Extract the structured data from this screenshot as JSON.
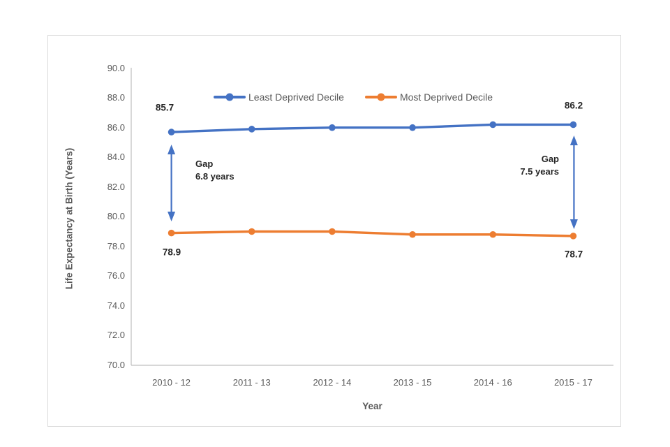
{
  "chart_data": {
    "type": "line",
    "title": "",
    "xlabel": "Year",
    "ylabel": "Life Expectancy at Birth (Years)",
    "categories": [
      "2010 - 12",
      "2011 - 13",
      "2012 - 14",
      "2013 - 15",
      "2014 - 16",
      "2015 - 17"
    ],
    "series": [
      {
        "name": "Least Deprived Decile",
        "color": "#4472C4",
        "values": [
          85.7,
          85.9,
          86.0,
          86.0,
          86.2,
          86.2
        ]
      },
      {
        "name": "Most Deprived Decile",
        "color": "#ED7D31",
        "values": [
          78.9,
          79.0,
          79.0,
          78.8,
          78.8,
          78.7
        ]
      }
    ],
    "ylim": [
      70.0,
      90.0
    ],
    "ytick_step": 2.0,
    "ytick_labels": [
      "90.0",
      "88.0",
      "86.0",
      "84.0",
      "82.0",
      "80.0",
      "78.0",
      "76.0",
      "74.0",
      "72.0",
      "70.0"
    ],
    "grid": false,
    "legend_position": "top-center-inside",
    "gap_arrow_color": "#4472C4",
    "annotations": {
      "least_start": "85.7",
      "least_end": "86.2",
      "most_start": "78.9",
      "most_end": "78.7",
      "gap_left_label": "Gap",
      "gap_left_value": "6.8 years",
      "gap_right_label": "Gap",
      "gap_right_value": "7.5 years"
    }
  }
}
